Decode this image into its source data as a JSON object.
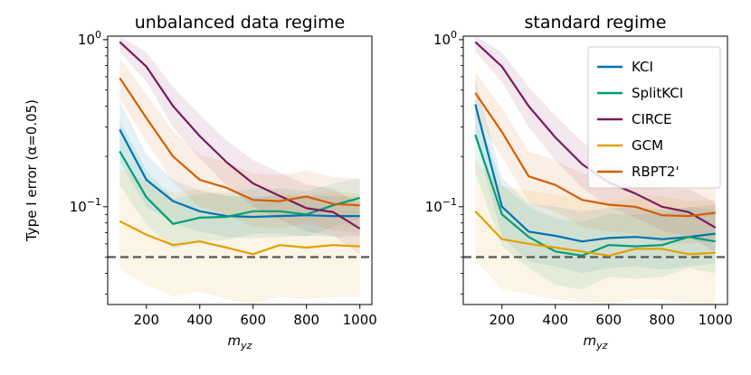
{
  "chart_data": [
    {
      "type": "line",
      "title": "unbalanced data regime",
      "xlabel_base": "m",
      "xlabel_sub": "yz",
      "ylabel": "Type I error (α=0.05)",
      "yscale": "log",
      "ylim": [
        0.026,
        1.05
      ],
      "xlim": [
        55,
        1045
      ],
      "xticks": [
        200,
        400,
        600,
        800,
        1000
      ],
      "yticks": [
        {
          "value": 1.0,
          "base": "10",
          "exp": "0"
        },
        {
          "value": 0.1,
          "base": "10",
          "exp": "−1"
        }
      ],
      "reference_line": 0.05,
      "x": [
        100,
        200,
        300,
        400,
        500,
        600,
        700,
        800,
        900,
        1000
      ],
      "series": [
        {
          "name": "KCI",
          "color": "#0072b2",
          "values": [
            0.29,
            0.145,
            0.108,
            0.094,
            0.088,
            0.087,
            0.088,
            0.089,
            0.088,
            0.088
          ],
          "lower": [
            0.185,
            0.1,
            0.08,
            0.071,
            0.066,
            0.065,
            0.066,
            0.067,
            0.066,
            0.067
          ],
          "upper": [
            0.43,
            0.205,
            0.145,
            0.125,
            0.116,
            0.115,
            0.116,
            0.117,
            0.116,
            0.115
          ]
        },
        {
          "name": "SplitKCI",
          "color": "#009e73",
          "values": [
            0.215,
            0.114,
            0.079,
            0.086,
            0.087,
            0.094,
            0.094,
            0.09,
            0.102,
            0.113
          ],
          "lower": [
            0.135,
            0.078,
            0.056,
            0.062,
            0.063,
            0.069,
            0.069,
            0.066,
            0.076,
            0.085
          ],
          "upper": [
            0.33,
            0.165,
            0.112,
            0.12,
            0.121,
            0.129,
            0.129,
            0.124,
            0.138,
            0.148
          ]
        },
        {
          "name": "CIRCE",
          "color": "#7b1c5a",
          "values": [
            0.97,
            0.69,
            0.4,
            0.265,
            0.185,
            0.138,
            0.116,
            0.098,
            0.093,
            0.074
          ],
          "lower": [
            0.85,
            0.56,
            0.3,
            0.195,
            0.135,
            0.1,
            0.084,
            0.071,
            0.067,
            0.052
          ],
          "upper": [
            1.05,
            0.84,
            0.52,
            0.355,
            0.25,
            0.19,
            0.16,
            0.136,
            0.128,
            0.104
          ]
        },
        {
          "name": "GCM",
          "color": "#e69f00",
          "values": [
            0.082,
            0.068,
            0.059,
            0.062,
            0.057,
            0.052,
            0.059,
            0.057,
            0.059,
            0.058
          ],
          "lower": [
            0.042,
            0.034,
            0.029,
            0.031,
            0.028,
            0.026,
            0.029,
            0.028,
            0.029,
            0.029
          ],
          "upper": [
            0.17,
            0.14,
            0.122,
            0.128,
            0.118,
            0.108,
            0.122,
            0.118,
            0.122,
            0.12
          ]
        },
        {
          "name": "RBPT2'",
          "color": "#d55e00",
          "values": [
            0.59,
            0.34,
            0.2,
            0.145,
            0.13,
            0.11,
            0.108,
            0.115,
            0.104,
            0.102
          ],
          "lower": [
            0.44,
            0.245,
            0.14,
            0.1,
            0.09,
            0.076,
            0.074,
            0.08,
            0.072,
            0.07
          ],
          "upper": [
            0.78,
            0.47,
            0.285,
            0.205,
            0.185,
            0.158,
            0.155,
            0.165,
            0.15,
            0.148
          ]
        }
      ]
    },
    {
      "type": "line",
      "title": "standard regime",
      "xlabel_base": "m",
      "xlabel_sub": "yz",
      "yscale": "log",
      "ylim": [
        0.026,
        1.05
      ],
      "xlim": [
        55,
        1045
      ],
      "xticks": [
        200,
        400,
        600,
        800,
        1000
      ],
      "yticks": [
        {
          "value": 1.0,
          "base": "10",
          "exp": "0"
        },
        {
          "value": 0.1,
          "base": "10",
          "exp": "−1"
        }
      ],
      "reference_line": 0.05,
      "legend": [
        "KCI",
        "SplitKCI",
        "CIRCE",
        "GCM",
        "RBPT2'"
      ],
      "x": [
        100,
        200,
        300,
        400,
        500,
        600,
        700,
        800,
        900,
        1000
      ],
      "series": [
        {
          "name": "KCI",
          "color": "#0072b2",
          "values": [
            0.41,
            0.1,
            0.071,
            0.067,
            0.062,
            0.065,
            0.066,
            0.064,
            0.066,
            0.069
          ],
          "lower": [
            0.26,
            0.066,
            0.047,
            0.044,
            0.04,
            0.043,
            0.044,
            0.042,
            0.044,
            0.046
          ],
          "upper": [
            0.58,
            0.148,
            0.105,
            0.1,
            0.094,
            0.098,
            0.099,
            0.096,
            0.099,
            0.103
          ]
        },
        {
          "name": "SplitKCI",
          "color": "#009e73",
          "values": [
            0.27,
            0.09,
            0.066,
            0.054,
            0.051,
            0.059,
            0.058,
            0.059,
            0.066,
            0.062
          ],
          "lower": [
            0.16,
            0.058,
            0.043,
            0.034,
            0.032,
            0.038,
            0.037,
            0.038,
            0.043,
            0.04
          ],
          "upper": [
            0.4,
            0.135,
            0.1,
            0.085,
            0.081,
            0.091,
            0.09,
            0.091,
            0.1,
            0.095
          ]
        },
        {
          "name": "CIRCE",
          "color": "#7b1c5a",
          "values": [
            0.97,
            0.69,
            0.4,
            0.26,
            0.18,
            0.14,
            0.12,
            0.1,
            0.093,
            0.075
          ],
          "lower": [
            0.85,
            0.56,
            0.3,
            0.19,
            0.13,
            0.1,
            0.086,
            0.072,
            0.067,
            0.053
          ],
          "upper": [
            1.05,
            0.84,
            0.52,
            0.35,
            0.245,
            0.19,
            0.165,
            0.138,
            0.128,
            0.106
          ]
        },
        {
          "name": "GCM",
          "color": "#e69f00",
          "values": [
            0.094,
            0.064,
            0.06,
            0.057,
            0.054,
            0.051,
            0.056,
            0.056,
            0.052,
            0.053
          ],
          "lower": [
            0.048,
            0.032,
            0.03,
            0.028,
            0.027,
            0.026,
            0.028,
            0.028,
            0.026,
            0.026
          ],
          "upper": [
            0.19,
            0.132,
            0.125,
            0.118,
            0.112,
            0.106,
            0.116,
            0.116,
            0.108,
            0.11
          ]
        },
        {
          "name": "RBPT2'",
          "color": "#d55e00",
          "values": [
            0.48,
            0.28,
            0.152,
            0.135,
            0.11,
            0.103,
            0.1,
            0.089,
            0.088,
            0.092
          ],
          "lower": [
            0.35,
            0.2,
            0.106,
            0.094,
            0.076,
            0.071,
            0.069,
            0.061,
            0.06,
            0.063
          ],
          "upper": [
            0.64,
            0.39,
            0.215,
            0.19,
            0.158,
            0.148,
            0.144,
            0.128,
            0.127,
            0.132
          ]
        }
      ]
    }
  ]
}
